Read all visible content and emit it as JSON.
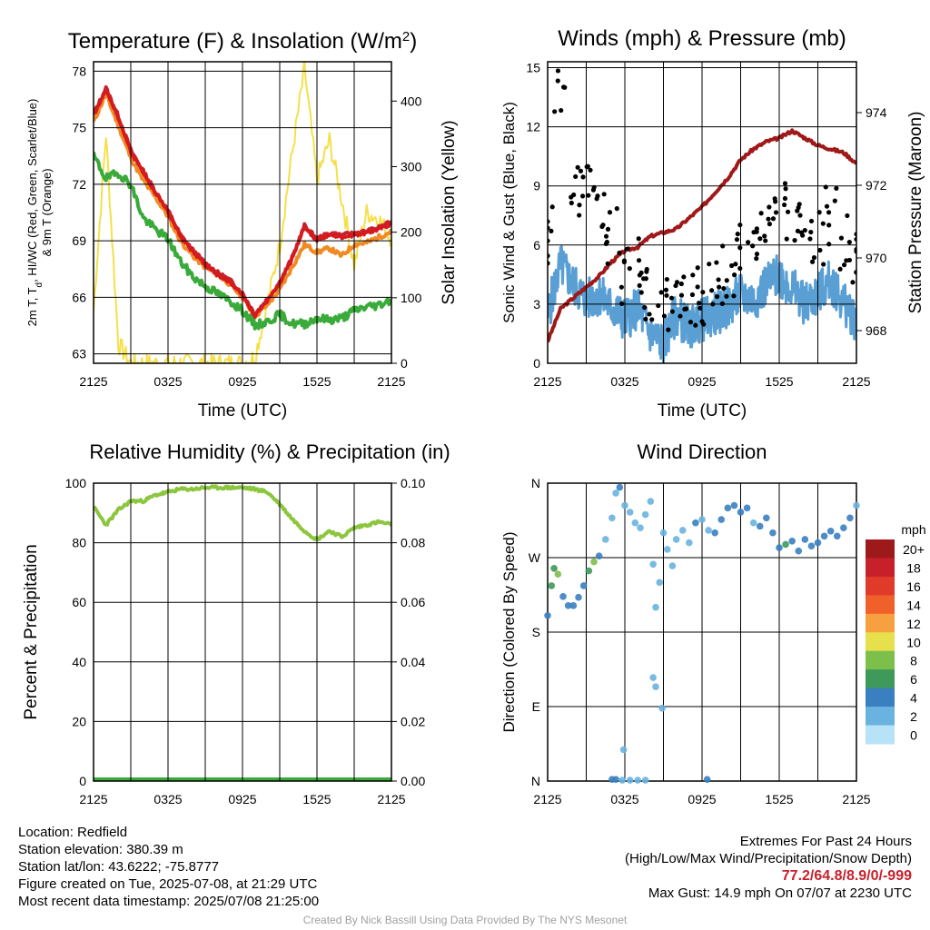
{
  "colors": {
    "t2m": "#d7191c",
    "td": "#3aab3a",
    "hiwc": "#c8202a",
    "t9m": "#f08a24",
    "insolation": "#f5e04a",
    "wind": "#5a9fd4",
    "gust": "#000000",
    "pressure": "#a01818",
    "rh": "#8cc63f",
    "precip": "#3aab3a",
    "grid": "#000000",
    "credit": "#a0a0a0",
    "extremes": "#c8202a"
  },
  "chart_data": [
    {
      "id": "temp",
      "type": "line",
      "title": "Temperature (F) & Insolation (W/m",
      "title_sup": "2",
      "title_tail": ")",
      "xlabel": "Time (UTC)",
      "ylabel": [
        "2m T, T",
        "d",
        ", HI/WC (Red, Green, Scarlet/Blue)",
        "& 9m T (Orange)"
      ],
      "ylabel_right": "Solar Insolation (Yellow)",
      "x_ticks": [
        "2125",
        "0325",
        "0925",
        "1525",
        "2125"
      ],
      "ylim": [
        62.5,
        78.5
      ],
      "y_ticks": [
        63,
        66,
        69,
        72,
        75,
        78
      ],
      "ylim_right": [
        0,
        460
      ],
      "y_ticks_right": [
        0,
        100,
        200,
        300,
        400
      ],
      "grid": true,
      "hours_from_start": [
        0,
        1,
        2,
        3,
        4,
        5,
        6,
        7,
        8,
        9,
        10,
        11,
        12,
        13,
        14,
        15,
        16,
        17,
        18,
        19,
        20,
        21,
        22,
        23,
        24
      ],
      "series": [
        {
          "key": "insolation",
          "axis": "right",
          "values": [
            80,
            350,
            30,
            0,
            0,
            0,
            0,
            0,
            0,
            0,
            0,
            0,
            0,
            10,
            90,
            180,
            320,
            450,
            280,
            340,
            250,
            150,
            230,
            220,
            190
          ]
        },
        {
          "key": "t9m",
          "axis": "left",
          "values": [
            75.3,
            76.8,
            75.1,
            73.4,
            72.2,
            71.3,
            70.3,
            69.0,
            68.2,
            67.6,
            67.2,
            66.7,
            66.0,
            65.0,
            65.6,
            66.4,
            67.6,
            68.8,
            68.4,
            68.6,
            68.2,
            68.8,
            68.9,
            69.2,
            69.5
          ]
        },
        {
          "key": "hiwc",
          "axis": "left",
          "values": [
            75.7,
            77.1,
            75.6,
            73.8,
            72.7,
            71.6,
            70.6,
            69.3,
            68.5,
            67.8,
            67.3,
            66.9,
            66.2,
            65.1,
            65.9,
            66.8,
            68.1,
            69.8,
            69.1,
            69.4,
            69.3,
            69.4,
            69.5,
            69.7,
            70.0
          ]
        },
        {
          "key": "t2m",
          "axis": "left",
          "values": [
            75.6,
            77.0,
            75.5,
            73.7,
            72.6,
            71.5,
            70.5,
            69.2,
            68.4,
            67.7,
            67.2,
            66.8,
            66.1,
            65.0,
            65.8,
            66.7,
            68.0,
            69.7,
            69.0,
            69.3,
            69.2,
            69.3,
            69.4,
            69.6,
            69.9
          ]
        },
        {
          "key": "td",
          "axis": "left",
          "values": [
            73.5,
            72.3,
            72.6,
            72.0,
            70.2,
            69.6,
            69.1,
            67.9,
            67.1,
            66.6,
            66.2,
            65.8,
            65.3,
            64.5,
            64.7,
            65.1,
            64.6,
            64.6,
            64.9,
            64.8,
            64.9,
            65.3,
            65.5,
            65.6,
            65.9
          ]
        }
      ]
    },
    {
      "id": "wind",
      "type": "line",
      "title": "Winds (mph) & Pressure (mb)",
      "xlabel": "Time (UTC)",
      "ylabel": "Sonic Wind & Gust (Blue, Black)",
      "ylabel_right": "Station Pressure (Maroon)",
      "x_ticks": [
        "2125",
        "0325",
        "0925",
        "1525",
        "2125"
      ],
      "ylim": [
        0,
        15.3
      ],
      "y_ticks": [
        0,
        3,
        6,
        9,
        12,
        15
      ],
      "ylim_right": [
        967.1,
        975.4
      ],
      "y_ticks_right": [
        968,
        970,
        972,
        974
      ],
      "grid": true,
      "hours_from_start": [
        0,
        1,
        2,
        3,
        4,
        5,
        6,
        7,
        8,
        9,
        10,
        11,
        12,
        13,
        14,
        15,
        16,
        17,
        18,
        19,
        20,
        21,
        22,
        23,
        24
      ],
      "series": [
        {
          "key": "pressure",
          "axis": "right",
          "values": [
            967.7,
            968.6,
            968.9,
            969.2,
            969.5,
            969.9,
            970.2,
            970.3,
            970.6,
            970.7,
            970.8,
            971.1,
            971.4,
            971.8,
            972.2,
            972.7,
            973.0,
            973.2,
            973.3,
            973.5,
            973.3,
            973.1,
            973.0,
            972.9,
            972.6
          ]
        },
        {
          "key": "wind",
          "axis": "left",
          "values": [
            2.5,
            5.0,
            4.0,
            3.2,
            3.5,
            2.8,
            2.2,
            2.8,
            1.5,
            1.0,
            2.5,
            1.8,
            2.2,
            2.5,
            2.8,
            3.5,
            3.2,
            4.0,
            4.5,
            3.8,
            3.0,
            3.5,
            4.2,
            3.0,
            2.2
          ]
        },
        {
          "key": "gust",
          "axis": "left",
          "type": "scatter",
          "values": [
            6.5,
            14.2,
            8.5,
            8.8,
            7.8,
            6.5,
            4.5,
            5.0,
            3.6,
            3.2,
            3.0,
            3.0,
            3.4,
            3.8,
            4.5,
            5.8,
            6.0,
            6.5,
            8.5,
            7.5,
            7.0,
            6.2,
            7.5,
            6.0,
            5.2
          ]
        }
      ]
    },
    {
      "id": "rh",
      "type": "line",
      "title": "Relative Humidity (%) & Precipitation (in)",
      "ylabel": "Percent & Precipitation",
      "x_ticks": [
        "2125",
        "0325",
        "0925",
        "1525",
        "2125"
      ],
      "ylim": [
        0,
        100
      ],
      "y_ticks": [
        0,
        20,
        40,
        60,
        80,
        100
      ],
      "ylim_right": [
        0,
        0.1
      ],
      "y_ticks_right": [
        "0.00",
        "0.02",
        "0.04",
        "0.06",
        "0.08",
        "0.10"
      ],
      "grid": true,
      "hours_from_start": [
        0,
        1,
        2,
        3,
        4,
        5,
        6,
        7,
        8,
        9,
        10,
        11,
        12,
        13,
        14,
        15,
        16,
        17,
        18,
        19,
        20,
        21,
        22,
        23,
        24
      ],
      "series": [
        {
          "key": "rh",
          "axis": "left",
          "values": [
            92,
            86,
            91,
            94,
            94,
            96,
            97,
            98,
            98,
            98.5,
            98.5,
            98.5,
            98.5,
            98,
            97,
            93,
            88,
            84,
            81,
            84,
            82,
            85,
            86,
            87,
            86
          ]
        },
        {
          "key": "precip",
          "axis": "right",
          "values": [
            0,
            0,
            0,
            0,
            0,
            0,
            0,
            0,
            0,
            0,
            0,
            0,
            0,
            0,
            0,
            0,
            0,
            0,
            0,
            0,
            0,
            0,
            0,
            0,
            0
          ]
        }
      ]
    },
    {
      "id": "dir",
      "type": "scatter",
      "title": "Wind Direction",
      "ylabel": "Direction (Colored By Speed)",
      "x_ticks": [
        "2125",
        "0325",
        "0925",
        "1525",
        "2125"
      ],
      "y_ticks": [
        "N",
        "E",
        "S",
        "W",
        "N"
      ],
      "ylim": [
        0,
        360
      ],
      "grid": true,
      "colorbar_title": "mph",
      "colorbar_labels": [
        "20+",
        "18",
        "16",
        "14",
        "12",
        "10",
        "8",
        "6",
        "4",
        "2",
        "0"
      ],
      "colorbar_colors": [
        "#9e1a1a",
        "#c8202a",
        "#e03a2a",
        "#f0602a",
        "#f7a040",
        "#e6e04c",
        "#7cbf4a",
        "#3d9a5a",
        "#3a80c0",
        "#6ab2e0",
        "#b8e2f7"
      ],
      "points": [
        {
          "x": 0.0,
          "y": 200,
          "s": 4
        },
        {
          "x": 0.3,
          "y": 236,
          "s": 5
        },
        {
          "x": 0.5,
          "y": 257,
          "s": 6
        },
        {
          "x": 0.8,
          "y": 250,
          "s": 7
        },
        {
          "x": 1.2,
          "y": 223,
          "s": 4
        },
        {
          "x": 1.6,
          "y": 212,
          "s": 4
        },
        {
          "x": 2.0,
          "y": 212,
          "s": 3
        },
        {
          "x": 2.4,
          "y": 222,
          "s": 4
        },
        {
          "x": 2.8,
          "y": 236,
          "s": 4
        },
        {
          "x": 3.2,
          "y": 254,
          "s": 6
        },
        {
          "x": 3.6,
          "y": 265,
          "s": 7
        },
        {
          "x": 4.0,
          "y": 272,
          "s": 4
        },
        {
          "x": 4.5,
          "y": 292,
          "s": 2
        },
        {
          "x": 5.0,
          "y": 318,
          "s": 1
        },
        {
          "x": 5.3,
          "y": 348,
          "s": 2
        },
        {
          "x": 5.6,
          "y": 355,
          "s": 3
        },
        {
          "x": 6.0,
          "y": 333,
          "s": 2
        },
        {
          "x": 6.4,
          "y": 325,
          "s": 2
        },
        {
          "x": 6.8,
          "y": 312,
          "s": 2
        },
        {
          "x": 7.2,
          "y": 306,
          "s": 1
        },
        {
          "x": 7.6,
          "y": 322,
          "s": 2
        },
        {
          "x": 8.0,
          "y": 338,
          "s": 1
        },
        {
          "x": 8.2,
          "y": 262,
          "s": 1
        },
        {
          "x": 8.4,
          "y": 210,
          "s": 1
        },
        {
          "x": 8.7,
          "y": 240,
          "s": 1
        },
        {
          "x": 9.0,
          "y": 300,
          "s": 1
        },
        {
          "x": 9.3,
          "y": 280,
          "s": 2
        },
        {
          "x": 9.7,
          "y": 260,
          "s": 1
        },
        {
          "x": 10.0,
          "y": 292,
          "s": 2
        },
        {
          "x": 10.5,
          "y": 303,
          "s": 2
        },
        {
          "x": 11.0,
          "y": 288,
          "s": 2
        },
        {
          "x": 11.5,
          "y": 312,
          "s": 3
        },
        {
          "x": 12.0,
          "y": 316,
          "s": 2
        },
        {
          "x": 12.5,
          "y": 303,
          "s": 2
        },
        {
          "x": 13.0,
          "y": 300,
          "s": 3
        },
        {
          "x": 13.5,
          "y": 316,
          "s": 3
        },
        {
          "x": 14.0,
          "y": 330,
          "s": 3
        },
        {
          "x": 14.5,
          "y": 333,
          "s": 4
        },
        {
          "x": 15.0,
          "y": 325,
          "s": 3
        },
        {
          "x": 15.5,
          "y": 330,
          "s": 4
        },
        {
          "x": 16.0,
          "y": 312,
          "s": 2
        },
        {
          "x": 16.5,
          "y": 308,
          "s": 3
        },
        {
          "x": 17.0,
          "y": 318,
          "s": 4
        },
        {
          "x": 17.5,
          "y": 300,
          "s": 3
        },
        {
          "x": 18.0,
          "y": 282,
          "s": 4
        },
        {
          "x": 18.5,
          "y": 286,
          "s": 6
        },
        {
          "x": 19.0,
          "y": 290,
          "s": 3
        },
        {
          "x": 19.5,
          "y": 278,
          "s": 4
        },
        {
          "x": 20.0,
          "y": 292,
          "s": 4
        },
        {
          "x": 20.5,
          "y": 284,
          "s": 3
        },
        {
          "x": 21.0,
          "y": 288,
          "s": 4
        },
        {
          "x": 21.5,
          "y": 296,
          "s": 3
        },
        {
          "x": 22.0,
          "y": 302,
          "s": 3
        },
        {
          "x": 22.5,
          "y": 296,
          "s": 4
        },
        {
          "x": 23.0,
          "y": 306,
          "s": 3
        },
        {
          "x": 23.5,
          "y": 318,
          "s": 3
        },
        {
          "x": 24.0,
          "y": 333,
          "s": 2
        },
        {
          "x": 5.0,
          "y": 2,
          "s": 3
        },
        {
          "x": 5.3,
          "y": 2,
          "s": 3
        },
        {
          "x": 5.8,
          "y": 1,
          "s": 2
        },
        {
          "x": 6.4,
          "y": 1,
          "s": 2
        },
        {
          "x": 7.0,
          "y": 1,
          "s": 2
        },
        {
          "x": 7.6,
          "y": 1,
          "s": 2
        },
        {
          "x": 5.9,
          "y": 38,
          "s": 1
        },
        {
          "x": 8.2,
          "y": 125,
          "s": 1
        },
        {
          "x": 8.4,
          "y": 114,
          "s": 1
        },
        {
          "x": 8.9,
          "y": 88,
          "s": 1
        },
        {
          "x": 12.4,
          "y": 2,
          "s": 3
        }
      ]
    }
  ],
  "footer": {
    "location": "Location: Redfield",
    "elevation": "Station elevation: 380.39 m",
    "latlon": "Station lat/lon: 43.6222; -75.8777",
    "created": "Figure created on Tue, 2025-07-08, at 21:29 UTC",
    "recent": "Most recent data timestamp: 2025/07/08 21:25:00",
    "extremes_title": "Extremes For Past 24 Hours",
    "extremes_legend": "(High/Low/Max Wind/Precipitation/Snow Depth)",
    "extremes_values": "77.2/64.8/8.9/0/-999",
    "max_gust": "Max Gust: 14.9 mph On 07/07 at 2230 UTC",
    "credit": "Created By Nick Bassill Using Data Provided By The NYS Mesonet"
  }
}
